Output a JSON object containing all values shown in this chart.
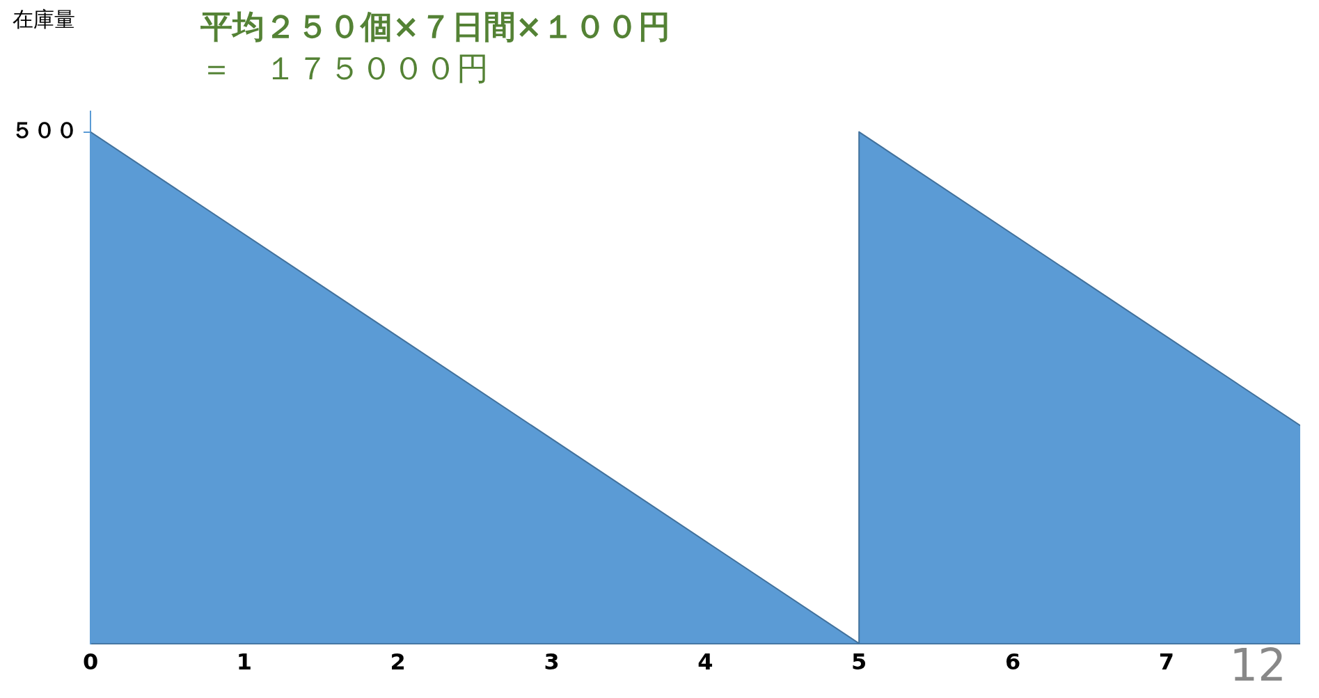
{
  "chart_data": {
    "type": "area",
    "title": "平均２５０個×７日間×１００円",
    "subtitle": "＝　１７５０００円",
    "ylabel": "在庫量",
    "x": [
      0,
      5,
      5,
      7.87
    ],
    "series": [
      {
        "color": "#5b9bd5",
        "values": [
          500,
          0,
          500,
          213
        ]
      }
    ],
    "xlim": [
      0,
      7.87
    ],
    "xticks": [
      0,
      1,
      2,
      3,
      4,
      5,
      6,
      7
    ],
    "ylim": [
      0,
      520
    ],
    "yticks": [
      {
        "value": 500,
        "label": "５００"
      }
    ],
    "grid": false,
    "legend": false,
    "annotations": [
      "12"
    ]
  }
}
